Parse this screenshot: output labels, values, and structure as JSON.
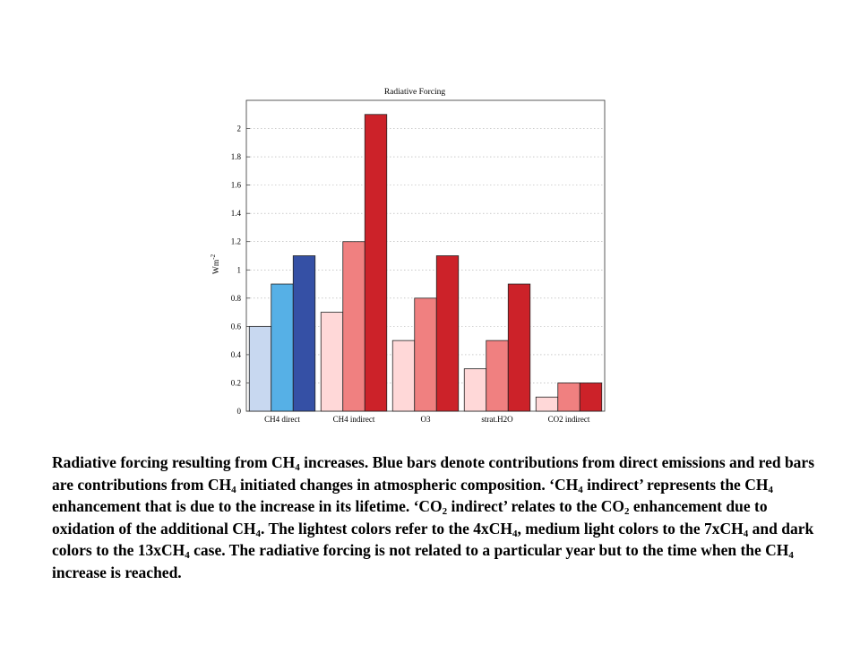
{
  "slide": {
    "caption": [
      {
        "t": "Radiative forcing resulting from CH"
      },
      {
        "sub": "4"
      },
      {
        "t": " increases. Blue bars denote contributions from direct emissions and red bars are contributions from CH"
      },
      {
        "sub": "4"
      },
      {
        "t": " initiated changes in atmospheric composition. ‘CH"
      },
      {
        "sub": "4"
      },
      {
        "t": " indirect’ represents the CH"
      },
      {
        "sub": "4"
      },
      {
        "t": " enhancement that is due to the increase in its lifetime. ‘CO"
      },
      {
        "sub": "2"
      },
      {
        "t": " indirect’ relates to the CO"
      },
      {
        "sub": "2"
      },
      {
        "t": " enhancement due to oxidation of the additional CH"
      },
      {
        "sub": "4"
      },
      {
        "t": ". The lightest colors refer to the 4xCH"
      },
      {
        "sub": "4"
      },
      {
        "t": ", medium light colors to the 7xCH"
      },
      {
        "sub": "4"
      },
      {
        "t": " and dark colors to the 13xCH"
      },
      {
        "sub": "4"
      },
      {
        "t": " case. The radiative forcing is not related to a particular year but to the time when the CH"
      },
      {
        "sub": "4"
      },
      {
        "t": " increase is reached."
      }
    ]
  },
  "chart_data": {
    "type": "bar",
    "title": "Radiative Forcing",
    "ylabel": "Wm",
    "ylabel_sup": "-2",
    "xlabel": "",
    "categories": [
      "CH4 direct",
      "CH4 indirect",
      "O3",
      "strat.H2O",
      "CO2 indirect"
    ],
    "ylim": [
      0,
      2.2
    ],
    "yticks": [
      0,
      0.2,
      0.4,
      0.6,
      0.8,
      1,
      1.2,
      1.4,
      1.6,
      1.8,
      2
    ],
    "grid": "horizontal dotted",
    "series": [
      {
        "values": [
          0.6,
          0.7,
          0.5,
          0.3,
          0.1
        ]
      },
      {
        "values": [
          0.9,
          1.2,
          0.8,
          0.5,
          0.2
        ]
      },
      {
        "values": [
          1.1,
          2.1,
          1.1,
          0.9,
          0.2
        ]
      }
    ],
    "colors": [
      [
        "#c8d8f0",
        "#ffd8d8",
        "#ffd8d8",
        "#ffd8d8",
        "#ffd8d8"
      ],
      [
        "#56b0e6",
        "#f08080",
        "#f08080",
        "#f08080",
        "#f08080"
      ],
      [
        "#3550a5",
        "#cc2229",
        "#cc2229",
        "#cc2229",
        "#cc2229"
      ]
    ]
  }
}
